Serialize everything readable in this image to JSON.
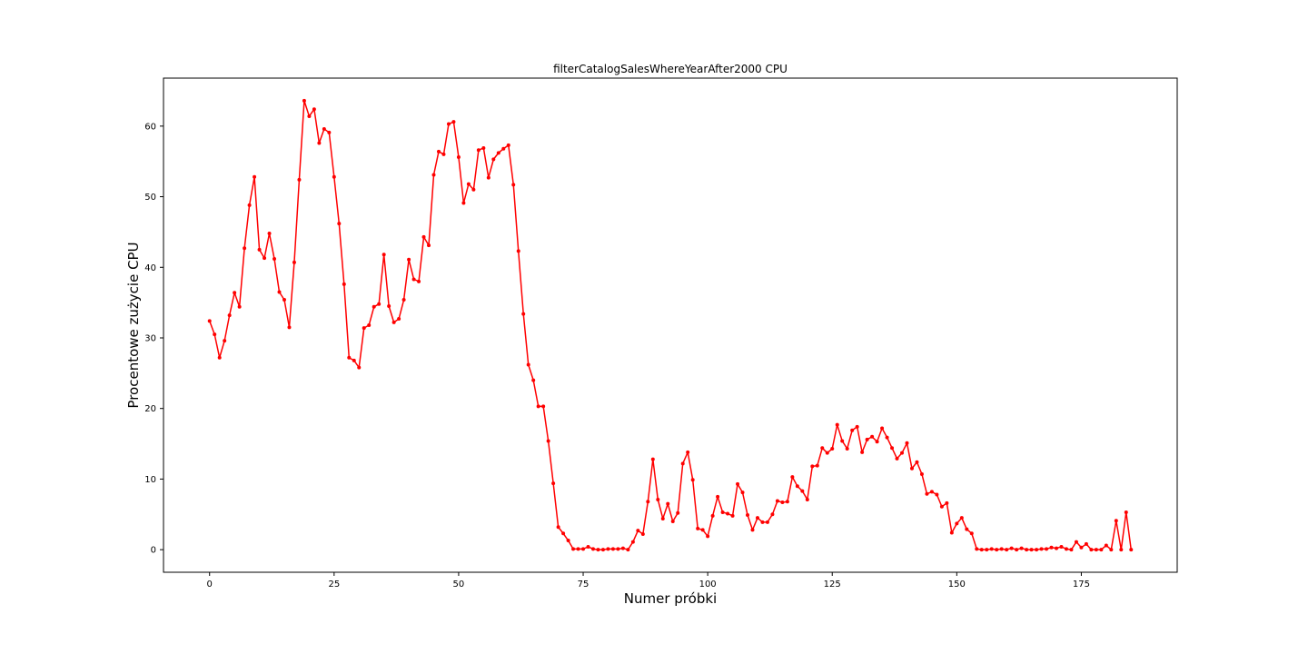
{
  "chart_data": {
    "type": "line",
    "title": "filterCatalogSalesWhereYearAfter2000 CPU",
    "xlabel": "Numer próbki",
    "ylabel": "Procentowe zużycie CPU",
    "xlim": [
      -9.25,
      194.25
    ],
    "ylim": [
      -3.2,
      66.8
    ],
    "xticks": [
      0,
      25,
      50,
      75,
      100,
      125,
      150,
      175
    ],
    "yticks": [
      0,
      10,
      20,
      30,
      40,
      50,
      60
    ],
    "grid": false,
    "series": [
      {
        "color": "#ff0000",
        "marker": "dot",
        "values": [
          32.4,
          30.5,
          27.2,
          29.6,
          33.2,
          36.4,
          34.4,
          42.7,
          48.8,
          52.8,
          42.5,
          41.3,
          44.8,
          41.2,
          36.5,
          35.4,
          31.5,
          40.7,
          52.4,
          63.6,
          61.4,
          62.4,
          57.6,
          59.6,
          59.1,
          52.8,
          46.2,
          37.6,
          27.2,
          26.8,
          25.8,
          31.4,
          31.8,
          34.4,
          34.8,
          41.8,
          34.5,
          32.2,
          32.7,
          35.4,
          41.1,
          38.3,
          38.0,
          44.3,
          43.1,
          53.1,
          56.4,
          56.0,
          60.3,
          60.6,
          55.6,
          49.1,
          51.8,
          51.0,
          56.6,
          56.9,
          52.7,
          55.3,
          56.2,
          56.8,
          57.3,
          51.7,
          42.3,
          33.4,
          26.2,
          24.0,
          20.3,
          20.3,
          15.4,
          9.4,
          3.2,
          2.3,
          1.3,
          0.1,
          0.1,
          0.1,
          0.4,
          0.1,
          0.0,
          0.0,
          0.1,
          0.1,
          0.1,
          0.2,
          0.0,
          1.1,
          2.7,
          2.2,
          6.8,
          12.8,
          7.1,
          4.4,
          6.5,
          4.0,
          5.2,
          12.2,
          13.8,
          9.9,
          3.0,
          2.8,
          1.9,
          4.8,
          7.5,
          5.3,
          5.1,
          4.8,
          9.3,
          8.1,
          4.9,
          2.8,
          4.5,
          3.9,
          3.9,
          5.0,
          6.9,
          6.7,
          6.8,
          10.3,
          9.0,
          8.3,
          7.1,
          11.8,
          11.9,
          14.4,
          13.7,
          14.3,
          17.7,
          15.4,
          14.3,
          16.9,
          17.4,
          13.8,
          15.6,
          16.0,
          15.3,
          17.2,
          15.9,
          14.4,
          12.9,
          13.7,
          15.1,
          11.5,
          12.4,
          10.7,
          7.9,
          8.2,
          7.8,
          6.1,
          6.6,
          2.4,
          3.7,
          4.5,
          2.9,
          2.3,
          0.1,
          0.0,
          0.0,
          0.1,
          0.0,
          0.1,
          0.0,
          0.2,
          0.0,
          0.2,
          0.0,
          0.0,
          0.0,
          0.1,
          0.1,
          0.3,
          0.2,
          0.4,
          0.1,
          0.0,
          1.1,
          0.3,
          0.8,
          0.0,
          0.0,
          0.0,
          0.6,
          0.0,
          4.1,
          0.0,
          5.3,
          0.0
        ]
      }
    ]
  }
}
